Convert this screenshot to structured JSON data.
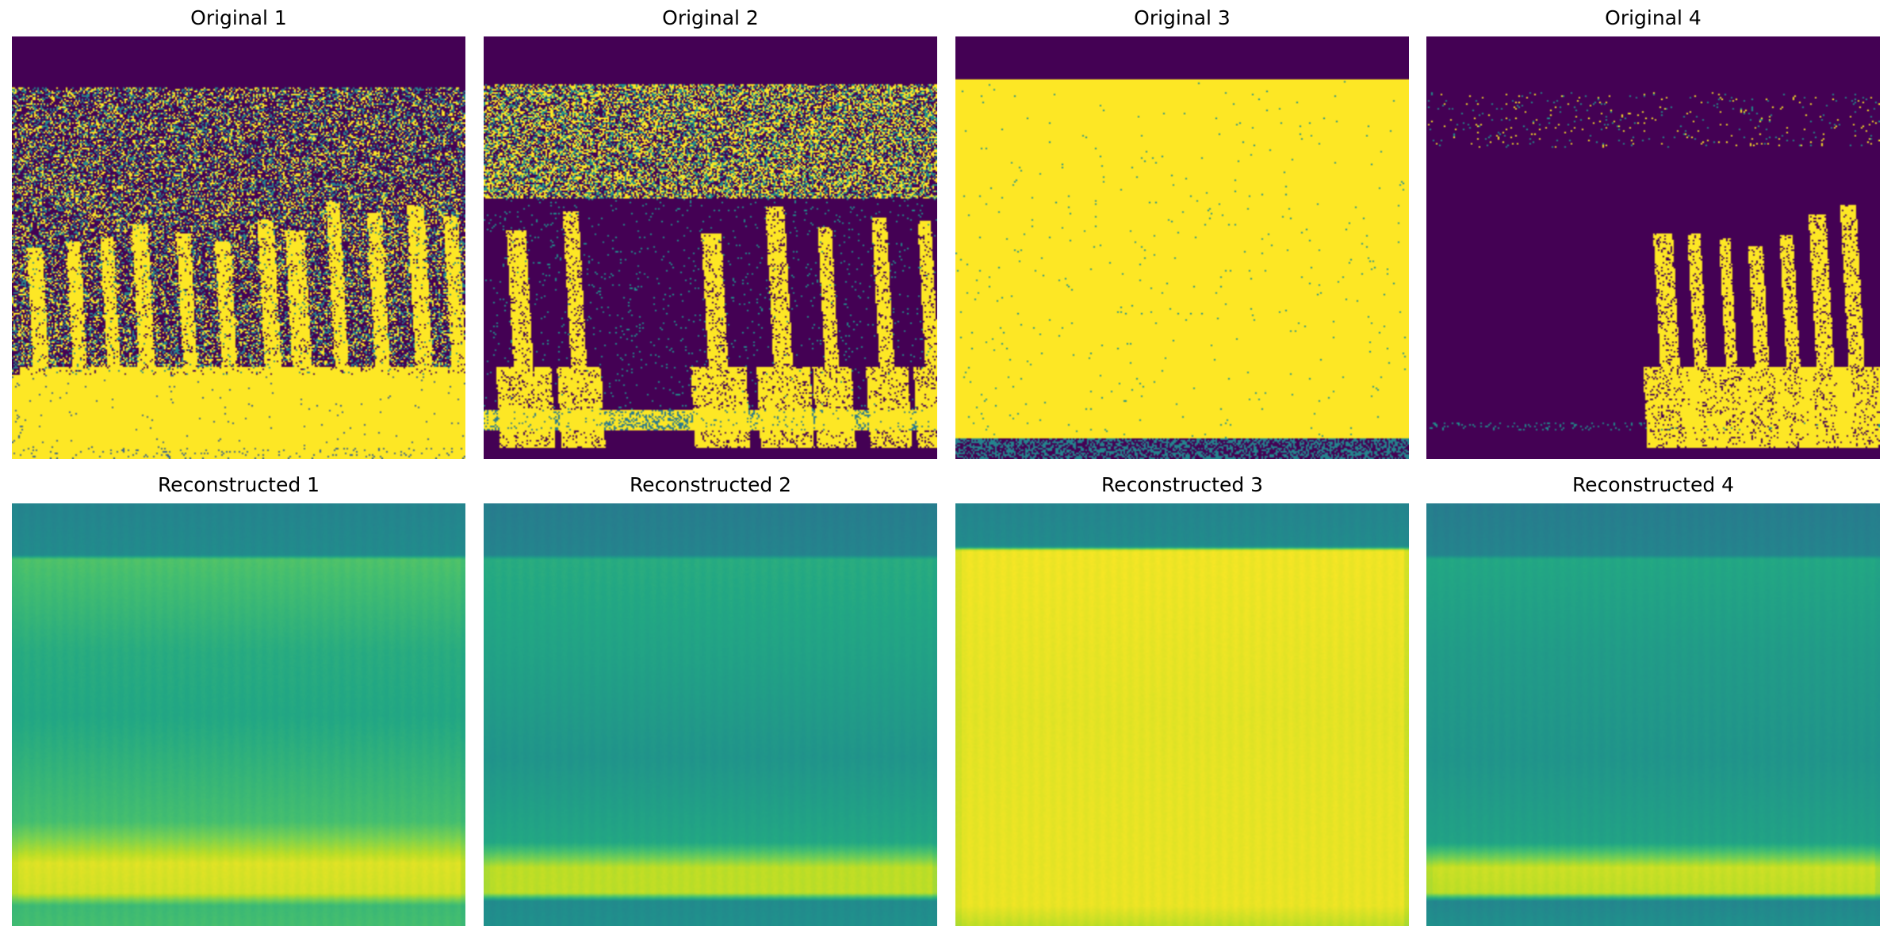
{
  "chart_data": {
    "type": "heatmap",
    "colormap": "viridis",
    "axes": "off",
    "grid": false,
    "layout": {
      "rows": 2,
      "cols": 4
    },
    "panels": [
      {
        "title": "Original 1",
        "row": 0,
        "col": 0,
        "kind": "original",
        "pattern": "dense-noise",
        "description_values": {
          "top_band_end": 0.12,
          "noise_density": 0.45,
          "bottom_band_start": 0.8
        }
      },
      {
        "title": "Original 2",
        "row": 0,
        "col": 1,
        "kind": "original",
        "pattern": "mid-dark",
        "description_values": {
          "top_band_end": 0.11,
          "noise_density": 0.6,
          "bottom_band_start": 0.93
        }
      },
      {
        "title": "Original 3",
        "row": 0,
        "col": 2,
        "kind": "original",
        "pattern": "mostly-yellow",
        "description_values": {
          "top_band_end": 0.1,
          "bottom_band_start": 0.95
        }
      },
      {
        "title": "Original 4",
        "row": 0,
        "col": 3,
        "kind": "original",
        "pattern": "sparse",
        "description_values": {
          "top_band_end": 0.13,
          "bottom_band_start": 0.92
        }
      },
      {
        "title": "Reconstructed 1",
        "row": 1,
        "col": 0,
        "kind": "reconstructed",
        "profile": [
          [
            0.0,
            0.45
          ],
          [
            0.12,
            0.48
          ],
          [
            0.13,
            0.72
          ],
          [
            0.35,
            0.62
          ],
          [
            0.5,
            0.6
          ],
          [
            0.75,
            0.7
          ],
          [
            0.85,
            0.95
          ],
          [
            0.92,
            0.93
          ],
          [
            0.95,
            0.68
          ],
          [
            1.0,
            0.7
          ]
        ]
      },
      {
        "title": "Reconstructed 2",
        "row": 1,
        "col": 1,
        "kind": "reconstructed",
        "profile": [
          [
            0.0,
            0.42
          ],
          [
            0.12,
            0.45
          ],
          [
            0.13,
            0.62
          ],
          [
            0.35,
            0.58
          ],
          [
            0.6,
            0.52
          ],
          [
            0.8,
            0.6
          ],
          [
            0.86,
            0.9
          ],
          [
            0.92,
            0.9
          ],
          [
            0.94,
            0.48
          ],
          [
            1.0,
            0.5
          ]
        ]
      },
      {
        "title": "Reconstructed 3",
        "row": 1,
        "col": 2,
        "kind": "reconstructed",
        "profile": [
          [
            0.0,
            0.45
          ],
          [
            0.1,
            0.48
          ],
          [
            0.11,
            0.98
          ],
          [
            0.5,
            0.96
          ],
          [
            0.95,
            0.97
          ],
          [
            1.0,
            0.9
          ]
        ]
      },
      {
        "title": "Reconstructed 4",
        "row": 1,
        "col": 3,
        "kind": "reconstructed",
        "profile": [
          [
            0.0,
            0.42
          ],
          [
            0.12,
            0.45
          ],
          [
            0.13,
            0.6
          ],
          [
            0.35,
            0.55
          ],
          [
            0.6,
            0.52
          ],
          [
            0.8,
            0.58
          ],
          [
            0.86,
            0.92
          ],
          [
            0.92,
            0.9
          ],
          [
            0.94,
            0.46
          ],
          [
            1.0,
            0.5
          ]
        ]
      }
    ]
  }
}
